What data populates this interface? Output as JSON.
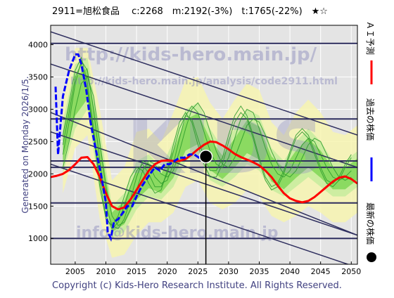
{
  "header": {
    "title": "2911=旭松食品　 c:2268　m:2192(-3%)　t:1765(-22%)　★☆"
  },
  "side_text": {
    "generated": "Generated on Monday 2026/1/5."
  },
  "legend": {
    "ai_forecast": "ＡＩ予測",
    "past_price": "過去の株価",
    "latest_price": "最新の株価"
  },
  "watermarks": {
    "url1": "http://kids-hero.main.jp/",
    "url2": "http://kids-hero.main.jp/analysis/code2911.html",
    "email": "info@kids-hero.main.jp",
    "logo": "KIDS"
  },
  "footer": {
    "copyright": "Copyright (c) Kids-Hero Research Institute. All Rights Reserved."
  },
  "colors": {
    "plot_background": "#e4e4e4",
    "ai_forecast": "#ff0000",
    "past_price": "#0000ff",
    "latest_marker": "#000000",
    "band_light": "#f7f5b0",
    "band_mid": "#c5ec9c",
    "band_green": "#7fd656",
    "scenario_line": "#2a9a2a",
    "channel_line": "#2e2e5e",
    "axis_text": "#404080"
  },
  "chart_data": {
    "type": "line",
    "xlim": [
      2001,
      2051
    ],
    "ylim": [
      600,
      4300
    ],
    "x_ticks": [
      2005,
      2010,
      2015,
      2020,
      2025,
      2030,
      2035,
      2040,
      2045,
      2050
    ],
    "y_ticks": [
      1000,
      1500,
      2000,
      2500,
      3000,
      3500,
      4000
    ],
    "grid": true,
    "legend_position": "right-vertical",
    "current_price": 2268,
    "medium_term_target": 2192,
    "long_term_target": 1765,
    "latest_point": {
      "x": 2026.3,
      "y": 2268
    },
    "past_price": {
      "x": [
        2001.8,
        2002.2,
        2003.0,
        2004.0,
        2005.0,
        2005.5,
        2006.0,
        2006.8,
        2007.5,
        2008.3,
        2009.2,
        2010.0,
        2010.3,
        2010.8,
        2011.3,
        2012.0,
        2012.8,
        2013.5,
        2014.3,
        2015.0,
        2015.8,
        2016.5,
        2017.2,
        2018.0,
        2018.8,
        2019.6,
        2020.4,
        2021.2,
        2022.0,
        2022.8,
        2023.6,
        2024.4,
        2025.2,
        2026.0
      ],
      "y": [
        3350,
        2300,
        3200,
        3600,
        3850,
        3850,
        3700,
        3300,
        2800,
        2400,
        2000,
        1550,
        1100,
        1000,
        1250,
        1300,
        1400,
        1500,
        1500,
        1650,
        1800,
        1900,
        2000,
        2100,
        2050,
        2150,
        2150,
        2200,
        2250,
        2250,
        2300,
        2300,
        2250,
        2268
      ]
    },
    "ai_forecast": {
      "x": [
        2001,
        2002,
        2003,
        2004,
        2005,
        2006,
        2007,
        2008,
        2009,
        2010,
        2011,
        2012,
        2013,
        2014,
        2015,
        2016,
        2017,
        2018,
        2019,
        2020,
        2021,
        2022,
        2023,
        2024,
        2025,
        2026,
        2027,
        2028,
        2029,
        2030,
        2031,
        2032,
        2033,
        2034,
        2035,
        2036,
        2037,
        2038,
        2039,
        2040,
        2041,
        2042,
        2043,
        2044,
        2045,
        2046,
        2047,
        2048,
        2049,
        2050,
        2051
      ],
      "y": [
        1950,
        1970,
        2000,
        2060,
        2150,
        2250,
        2260,
        2150,
        1950,
        1700,
        1500,
        1450,
        1480,
        1600,
        1750,
        1900,
        2050,
        2150,
        2200,
        2210,
        2200,
        2200,
        2230,
        2300,
        2380,
        2450,
        2500,
        2490,
        2440,
        2380,
        2310,
        2260,
        2220,
        2180,
        2130,
        2050,
        1950,
        1820,
        1700,
        1620,
        1580,
        1560,
        1580,
        1640,
        1720,
        1800,
        1880,
        1940,
        1960,
        1920,
        1850
      ]
    },
    "scenario_lines": [
      {
        "x": [
          2003,
          2004,
          2005,
          2006,
          2007,
          2008,
          2009,
          2010,
          2011,
          2012,
          2013,
          2014,
          2015,
          2016,
          2017,
          2018,
          2019,
          2020,
          2021,
          2022,
          2023,
          2024,
          2025,
          2026,
          2027,
          2028,
          2029,
          2030,
          2031,
          2032,
          2033,
          2034,
          2035,
          2036,
          2037,
          2038,
          2039,
          2040,
          2041,
          2042,
          2043,
          2044,
          2045,
          2046,
          2047,
          2048,
          2049,
          2050
        ],
        "y": [
          2300,
          2800,
          3400,
          3750,
          3600,
          3000,
          2200,
          1500,
          1200,
          1150,
          1300,
          1600,
          1950,
          2200,
          2150,
          1950,
          1850,
          1900,
          2150,
          2550,
          2900,
          3050,
          2950,
          2650,
          2350,
          2150,
          2100,
          2250,
          2550,
          2850,
          3000,
          2950,
          2700,
          2400,
          2150,
          2000,
          1950,
          2050,
          2250,
          2450,
          2550,
          2500,
          2300,
          2100,
          1950,
          1900,
          1950,
          2050
        ]
      },
      {
        "x": [
          2003,
          2004,
          2005,
          2006,
          2007,
          2008,
          2009,
          2010,
          2011,
          2012,
          2013,
          2014,
          2015,
          2016,
          2017,
          2018,
          2019,
          2020,
          2021,
          2022,
          2023,
          2024,
          2025,
          2026,
          2027,
          2028,
          2029,
          2030,
          2031,
          2032,
          2033,
          2034,
          2035,
          2036,
          2037,
          2038,
          2039,
          2040,
          2041,
          2042,
          2043,
          2044,
          2045,
          2046,
          2047,
          2048,
          2049,
          2050
        ],
        "y": [
          2600,
          3100,
          3600,
          3800,
          3400,
          2700,
          1900,
          1350,
          1150,
          1250,
          1500,
          1800,
          2050,
          2150,
          2000,
          1800,
          1800,
          2000,
          2350,
          2700,
          2900,
          2850,
          2550,
          2250,
          2050,
          2050,
          2250,
          2600,
          2900,
          3050,
          2900,
          2600,
          2250,
          1950,
          1800,
          1850,
          2050,
          2350,
          2600,
          2700,
          2600,
          2350,
          2100,
          1900,
          1850,
          1950,
          2150,
          2300
        ]
      },
      {
        "x": [
          2003,
          2004,
          2005,
          2006,
          2007,
          2008,
          2009,
          2010,
          2011,
          2012,
          2013,
          2014,
          2015,
          2016,
          2017,
          2018,
          2019,
          2020,
          2021,
          2022,
          2023,
          2024,
          2025,
          2026,
          2027,
          2028,
          2029,
          2030,
          2031,
          2032,
          2033,
          2034,
          2035,
          2036,
          2037,
          2038,
          2039,
          2040,
          2041,
          2042,
          2043,
          2044,
          2045,
          2046,
          2047,
          2048,
          2049,
          2050
        ],
        "y": [
          2100,
          2500,
          3000,
          3400,
          3500,
          3200,
          2500,
          1800,
          1350,
          1200,
          1250,
          1450,
          1750,
          2050,
          2200,
          2150,
          2000,
          1950,
          2050,
          2350,
          2700,
          3000,
          3100,
          2950,
          2650,
          2350,
          2150,
          2100,
          2250,
          2500,
          2750,
          2850,
          2800,
          2600,
          2350,
          2150,
          2000,
          1950,
          2050,
          2250,
          2450,
          2550,
          2500,
          2300,
          2100,
          1950,
          1900,
          1950
        ]
      },
      {
        "x": [
          2003,
          2004,
          2005,
          2006,
          2007,
          2008,
          2009,
          2010,
          2011,
          2012,
          2013,
          2014,
          2015,
          2016,
          2017,
          2018,
          2019,
          2020,
          2021,
          2022,
          2023,
          2024,
          2025,
          2026,
          2027,
          2028,
          2029,
          2030,
          2031,
          2032,
          2033,
          2034,
          2035,
          2036,
          2037,
          2038,
          2039,
          2040,
          2041,
          2042,
          2043,
          2044,
          2045,
          2046,
          2047,
          2048,
          2049,
          2050
        ],
        "y": [
          2450,
          2950,
          3500,
          3700,
          3300,
          2600,
          1800,
          1300,
          1200,
          1350,
          1650,
          1950,
          2100,
          2050,
          1850,
          1700,
          1750,
          2050,
          2450,
          2800,
          2950,
          2800,
          2450,
          2150,
          1950,
          1950,
          2150,
          2500,
          2800,
          2950,
          2850,
          2550,
          2200,
          1900,
          1750,
          1800,
          2000,
          2300,
          2550,
          2650,
          2550,
          2300,
          2050,
          1850,
          1800,
          1900,
          2100,
          2250
        ]
      }
    ],
    "band_inner_upper": {
      "x": [
        2003,
        2005,
        2007,
        2009,
        2011,
        2013,
        2015,
        2017,
        2019,
        2021,
        2023,
        2025,
        2027,
        2029,
        2031,
        2033,
        2035,
        2037,
        2039,
        2041,
        2043,
        2045,
        2047,
        2049,
        2051
      ],
      "y": [
        2800,
        3700,
        3800,
        2700,
        1500,
        1700,
        2200,
        2300,
        2100,
        2500,
        3000,
        3100,
        2700,
        2400,
        2700,
        3000,
        2900,
        2400,
        2200,
        2500,
        2700,
        2500,
        2200,
        2200,
        2350
      ]
    },
    "band_inner_lower": {
      "x": [
        2003,
        2005,
        2007,
        2009,
        2011,
        2013,
        2015,
        2017,
        2019,
        2021,
        2023,
        2025,
        2027,
        2029,
        2031,
        2033,
        2035,
        2037,
        2039,
        2041,
        2043,
        2045,
        2047,
        2049,
        2051
      ],
      "y": [
        2000,
        2700,
        3000,
        1700,
        1000,
        1100,
        1450,
        1650,
        1600,
        1800,
        2200,
        2300,
        1900,
        1800,
        1950,
        2150,
        2050,
        1750,
        1650,
        1800,
        1950,
        1800,
        1650,
        1650,
        1800
      ]
    },
    "band_outer_upper": {
      "x": [
        2003,
        2005,
        2007,
        2009,
        2011,
        2013,
        2015,
        2017,
        2019,
        2021,
        2023,
        2025,
        2027,
        2029,
        2031,
        2033,
        2035,
        2037,
        2039,
        2041,
        2043,
        2045,
        2047,
        2049,
        2051
      ],
      "y": [
        3100,
        3950,
        3950,
        3000,
        1900,
        2100,
        2650,
        2700,
        2500,
        2950,
        3450,
        3500,
        3100,
        2850,
        3150,
        3400,
        3300,
        2800,
        2600,
        2950,
        3150,
        2950,
        2650,
        2600,
        2750
      ]
    },
    "band_outer_lower": {
      "x": [
        2003,
        2005,
        2007,
        2009,
        2011,
        2013,
        2015,
        2017,
        2019,
        2021,
        2023,
        2025,
        2027,
        2029,
        2031,
        2033,
        2035,
        2037,
        2039,
        2041,
        2043,
        2045,
        2047,
        2049,
        2051
      ],
      "y": [
        1700,
        2400,
        2600,
        1300,
        700,
        750,
        1050,
        1250,
        1250,
        1400,
        1800,
        1900,
        1550,
        1450,
        1550,
        1750,
        1650,
        1350,
        1250,
        1350,
        1500,
        1400,
        1250,
        1250,
        1400
      ]
    },
    "channel_lines": [
      {
        "x": [
          2001,
          2051
        ],
        "y": [
          4200,
          2600
        ]
      },
      {
        "x": [
          2001,
          2051
        ],
        "y": [
          3700,
          2100
        ]
      },
      {
        "x": [
          2001,
          2051
        ],
        "y": [
          2950,
          1050
        ]
      },
      {
        "x": [
          2001,
          2051
        ],
        "y": [
          2650,
          1050
        ]
      },
      {
        "x": [
          2001,
          2051
        ],
        "y": [
          2150,
          550
        ]
      }
    ],
    "horizontal_lines": [
      2200,
      2850,
      2100,
      1550,
      1000,
      4020
    ]
  }
}
